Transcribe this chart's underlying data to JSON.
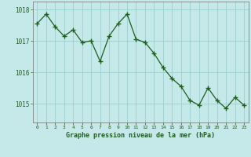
{
  "x": [
    0,
    1,
    2,
    3,
    4,
    5,
    6,
    7,
    8,
    9,
    10,
    11,
    12,
    13,
    14,
    15,
    16,
    17,
    18,
    19,
    20,
    21,
    22,
    23
  ],
  "y": [
    1017.55,
    1017.85,
    1017.45,
    1017.15,
    1017.35,
    1016.95,
    1017.0,
    1016.35,
    1017.15,
    1017.55,
    1017.85,
    1017.05,
    1016.95,
    1016.6,
    1016.15,
    1015.8,
    1015.55,
    1015.1,
    1014.95,
    1015.5,
    1015.1,
    1014.85,
    1015.2,
    1014.95
  ],
  "line_color": "#1e5e1e",
  "marker_color": "#1e5e1e",
  "bg_color": "#c5e8e8",
  "grid_color": "#9ecece",
  "xlabel": "Graphe pression niveau de la mer (hPa)",
  "xlabel_color": "#1e5e1e",
  "tick_color": "#1e5e1e",
  "ylim": [
    1014.4,
    1018.25
  ],
  "yticks": [
    1015,
    1016,
    1017,
    1018
  ],
  "spine_color": "#707070"
}
